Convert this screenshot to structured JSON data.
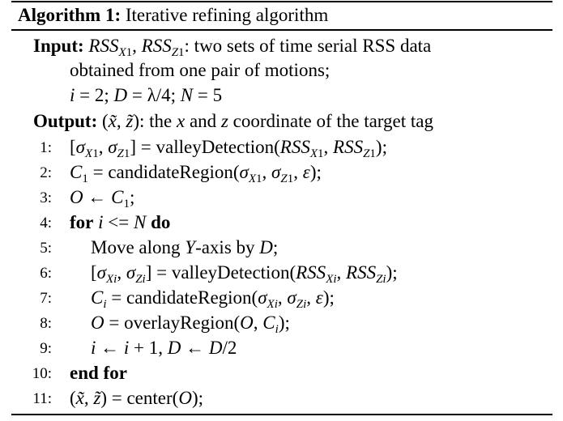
{
  "algorithm": {
    "label": "Algorithm 1:",
    "title": "Iterative refining algorithm"
  },
  "input": {
    "label": "Input:",
    "line1_text": ": two sets of time serial RSS data",
    "line2_text": "obtained from one pair of motions;",
    "params": "i = 2; D = λ/4; N = 5"
  },
  "output": {
    "label": "Output:",
    "vars": "(x̃, z̃)",
    "text": ": the x and z coordinate of the target tag"
  },
  "steps": [
    {
      "num": "1:",
      "text": "[σX1, σZ1] = valleyDetection(RSSX1, RSSZ1);"
    },
    {
      "num": "2:",
      "text": "C1 = candidateRegion(σX1, σZ1, ε);"
    },
    {
      "num": "3:",
      "text": "O ← C1;"
    },
    {
      "num": "4:",
      "kw1": "for",
      "cond": "i <= N",
      "kw2": "do"
    },
    {
      "num": "5:",
      "text": "Move along Y-axis by D;"
    },
    {
      "num": "6:",
      "text": "[σXi, σZi] = valleyDetection(RSSXi, RSSZi);"
    },
    {
      "num": "7:",
      "text": "Ci = candidateRegion(σXi, σZi, ε);"
    },
    {
      "num": "8:",
      "text": "O = overlayRegion(O, Ci);"
    },
    {
      "num": "9:",
      "text": "i ← i + 1, D ← D/2"
    },
    {
      "num": "10:",
      "kw": "end for"
    },
    {
      "num": "11:",
      "text": "(x̃, z̃) = center(O);"
    }
  ]
}
